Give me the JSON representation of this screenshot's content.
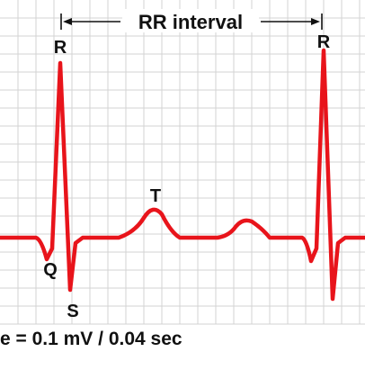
{
  "diagram": {
    "rr_label": "RR interval",
    "peak_r_left": "R",
    "peak_r_right": "R",
    "wave_t": "T",
    "wave_q": "Q",
    "wave_s": "S",
    "scale_caption": "e = 0.1 mV / 0.04 sec"
  },
  "colors": {
    "trace": "#e8141b",
    "grid": "#d3d3d3",
    "grid_major": "#bdbdbd",
    "text": "#111111",
    "background": "#ffffff"
  }
}
